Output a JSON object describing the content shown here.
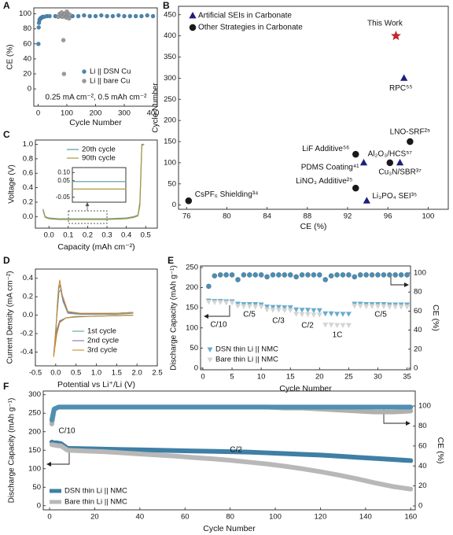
{
  "chart_data": [
    {
      "type": "scatter",
      "label": "A",
      "xlabel": "Cycle Number",
      "ylabel": "CE (%)",
      "xlim": [
        -15,
        415
      ],
      "ylim": [
        -23,
        108
      ],
      "xticks": [
        0,
        100,
        200,
        300,
        400
      ],
      "yticks": [
        0,
        20,
        40,
        60,
        80,
        100
      ],
      "legend": "lower right",
      "annotations": [
        "0.25 mA cm⁻², 0.5 mAh cm⁻²"
      ],
      "series": [
        {
          "name": "Li || DSN Cu",
          "color": "#4a86b0",
          "marker": "circle",
          "x": [
            1,
            2,
            3,
            5,
            8,
            12,
            16,
            20,
            30,
            40,
            60,
            80,
            100,
            120,
            140,
            160,
            180,
            200,
            220,
            240,
            260,
            280,
            300,
            320,
            340,
            360,
            380,
            400
          ],
          "values": [
            60,
            82,
            88,
            92,
            94,
            95,
            96,
            96,
            97,
            97,
            97,
            97,
            98,
            97,
            97,
            98,
            97,
            97,
            98,
            97,
            97,
            98,
            97,
            97,
            97,
            97,
            98,
            97
          ]
        },
        {
          "name": "Li || bare Cu",
          "color": "#9a9a9a",
          "marker": "circle",
          "x": [
            70,
            75,
            80,
            82,
            85,
            88,
            90,
            92,
            95,
            98,
            100,
            102,
            105,
            108,
            110
          ],
          "values": [
            96,
            100,
            98,
            102,
            96,
            65,
            20,
            99,
            101,
            95,
            103,
            97,
            100,
            94,
            99
          ]
        }
      ]
    },
    {
      "type": "scatter",
      "label": "B",
      "xlabel": "CE (%)",
      "ylabel": "Cycle Number",
      "xlim": [
        75.2,
        102
      ],
      "ylim": [
        -10,
        470
      ],
      "xticks": [
        76,
        80,
        84,
        88,
        92,
        96,
        100
      ],
      "yticks": [
        0,
        50,
        100,
        150,
        200,
        250,
        300,
        350,
        400,
        450
      ],
      "legend": "upper left",
      "series": [
        {
          "name": "Artificial SEIs in Carbonate",
          "color": "#1f1f7a",
          "marker": "triangle",
          "x": [
            93.6,
            97.2,
            93.9,
            97.6
          ],
          "values": [
            100,
            100,
            10,
            300
          ],
          "labels": [
            "PDMS Coating⁴¹",
            "Cu₃N/SBR³⁷",
            "Li₃PO₄ SEI³⁵",
            "RPC⁵⁵"
          ]
        },
        {
          "name": "Other Strategies in Carbonate",
          "color": "#1a1a1a",
          "marker": "circle",
          "x": [
            76.2,
            92.8,
            92.8,
            96.2,
            98.2
          ],
          "values": [
            10,
            40,
            120,
            100,
            150
          ],
          "labels": [
            "CsPF₆ Shielding³⁴",
            "LiNO₃ Additive²⁵",
            "LiF Additive⁵⁶",
            "Al₂O₃/HCS⁵⁷",
            "LNO-SRF²⁵"
          ]
        },
        {
          "color": "#c0282d",
          "marker": "star",
          "x": [
            96.8
          ],
          "values": [
            400
          ],
          "labels": [
            "This Work"
          ]
        }
      ]
    },
    {
      "type": "line",
      "label": "C",
      "xlabel": "Capacity (mAh cm⁻²)",
      "ylabel": "Voltage (V)",
      "xlim": [
        -0.07,
        0.56
      ],
      "ylim": [
        -0.16,
        1.06
      ],
      "xticks": [
        {
          "value": 0,
          "label": "0.0"
        },
        0.1,
        0.2,
        0.3,
        0.4,
        0.5
      ],
      "yticks": [
        {
          "value": 0,
          "label": "0.0"
        },
        0.2,
        0.4,
        0.6,
        0.8,
        {
          "value": 1,
          "label": "1.0"
        }
      ],
      "legend": "upper right",
      "x": [
        -0.03,
        -0.02,
        0.0,
        0.05,
        0.1,
        0.2,
        0.3,
        0.4,
        0.44,
        0.46,
        0.47,
        0.475,
        0.48,
        0.49
      ],
      "series": [
        {
          "name": "20th cycle",
          "color": "#5b9a9b",
          "values": [
            0.1,
            0.0,
            -0.02,
            -0.03,
            -0.03,
            -0.03,
            -0.03,
            -0.02,
            0.0,
            0.02,
            0.2,
            0.6,
            1.0,
            1.0
          ]
        },
        {
          "name": "90th cycle",
          "color": "#a89a3c",
          "values": [
            0.08,
            -0.01,
            -0.03,
            -0.04,
            -0.04,
            -0.04,
            -0.04,
            -0.03,
            -0.01,
            0.01,
            0.15,
            0.55,
            0.98,
            1.0
          ]
        }
      ]
    },
    {
      "type": "line",
      "xlim": [
        0.1,
        0.3
      ],
      "ylim": [
        -0.08,
        0.13
      ],
      "yticks": [
        {
          "value": 0.1,
          "label": "0.10"
        },
        0.05,
        -0.05
      ],
      "x": [
        0.1,
        0.2,
        0.3
      ],
      "series": [
        {
          "color": "#5b9a9b",
          "values": [
            0.045,
            0.045,
            0.045
          ]
        },
        {
          "color": "#a89a3c",
          "values": [
            0.0,
            0.0,
            0.0
          ]
        }
      ]
    },
    {
      "type": "line",
      "label": "D",
      "xlabel": "Potential vs Li⁺/Li (V)",
      "ylabel": "Current Density (mA cm⁻²)",
      "xlim": [
        -0.5,
        2.5
      ],
      "ylim": [
        -0.55,
        0.5
      ],
      "xticks": [
        -0.5,
        {
          "value": 0,
          "label": "0.0"
        },
        0.5,
        {
          "value": 1,
          "label": "1.0"
        },
        1.5,
        {
          "value": 2,
          "label": "2.0"
        },
        2.5
      ],
      "yticks": [
        -0.4,
        -0.2,
        {
          "value": 0,
          "label": "0.0"
        },
        0.2,
        0.4
      ],
      "legend": "lower right",
      "series": [
        {
          "name": "1st cycle",
          "color": "#5aa3a0",
          "x": [
            1.9,
            1.5,
            1.0,
            0.5,
            0.25,
            0.1,
            0.03,
            -0.02,
            -0.04,
            0.0,
            0.05,
            0.08,
            0.12,
            0.18,
            0.3,
            0.6,
            1.0,
            1.5,
            1.9
          ],
          "values": [
            0.0,
            -0.005,
            -0.01,
            -0.02,
            -0.03,
            -0.06,
            -0.15,
            -0.3,
            -0.4,
            -0.15,
            0.1,
            0.25,
            0.28,
            0.15,
            0.02,
            0.01,
            0.01,
            0.01,
            0.02
          ]
        },
        {
          "name": "2nd cycle",
          "color": "#8a6fb0",
          "x": [
            1.9,
            1.5,
            1.0,
            0.5,
            0.25,
            0.1,
            0.03,
            -0.02,
            -0.05,
            0.0,
            0.04,
            0.07,
            0.11,
            0.17,
            0.3,
            0.6,
            1.0,
            1.5,
            1.9
          ],
          "values": [
            0.0,
            -0.005,
            -0.01,
            -0.015,
            -0.03,
            -0.07,
            -0.18,
            -0.33,
            -0.43,
            -0.2,
            0.1,
            0.28,
            0.33,
            0.18,
            0.03,
            0.015,
            0.015,
            0.02,
            0.03
          ]
        },
        {
          "name": "3rd cycle",
          "color": "#c98a2a",
          "x": [
            1.9,
            1.5,
            1.0,
            0.5,
            0.25,
            0.1,
            0.03,
            -0.02,
            -0.05,
            0.0,
            0.04,
            0.07,
            0.1,
            0.16,
            0.3,
            0.6,
            1.0,
            1.5,
            1.9
          ],
          "values": [
            0.0,
            -0.005,
            -0.01,
            -0.015,
            -0.03,
            -0.08,
            -0.2,
            -0.35,
            -0.45,
            -0.2,
            0.12,
            0.3,
            0.38,
            0.22,
            0.04,
            0.02,
            0.02,
            0.02,
            0.03
          ]
        }
      ]
    },
    {
      "type": "scatter",
      "label": "E",
      "xlabel": "Cycle Number",
      "ylabel": "Discharge Capacity (mAh g⁻¹)",
      "y2label": "CE (%)",
      "xlim": [
        -0.4,
        35.6
      ],
      "ylim": [
        -4,
        254
      ],
      "y2lim": [
        -1.6,
        107.4
      ],
      "xticks": [
        0,
        5,
        10,
        15,
        20,
        25,
        30,
        35
      ],
      "yticks": [
        0,
        50,
        100,
        150,
        200,
        250
      ],
      "y2ticks": [
        0,
        20,
        40,
        60,
        80,
        100
      ],
      "legend": "lower left",
      "annotations": [
        "C/10",
        "C/5",
        "C/3",
        "C/2",
        "1C",
        "C/5"
      ],
      "x": [
        1,
        2,
        3,
        4,
        5,
        6,
        7,
        8,
        9,
        10,
        11,
        12,
        13,
        14,
        15,
        16,
        17,
        18,
        19,
        20,
        21,
        22,
        23,
        24,
        25,
        26,
        27,
        28,
        29,
        30,
        31,
        32,
        33,
        34,
        35
      ],
      "series": [
        {
          "name": "DSN thin Li || NMC",
          "color": "#6aaccb",
          "marker": "triangle-down",
          "values": [
            168,
            167,
            167,
            166,
            166,
            160,
            159,
            159,
            159,
            158,
            153,
            152,
            152,
            151,
            151,
            146,
            145,
            145,
            144,
            144,
            136,
            136,
            135,
            135,
            135,
            160,
            160,
            159,
            159,
            159,
            159,
            158,
            158,
            158,
            158
          ]
        },
        {
          "name": "Bare thin Li || NMC",
          "color": "#d4d4d4",
          "marker": "triangle-down",
          "values": [
            165,
            164,
            164,
            163,
            163,
            155,
            154,
            154,
            153,
            153,
            146,
            145,
            145,
            144,
            144,
            135,
            134,
            134,
            133,
            133,
            108,
            108,
            107,
            107,
            107,
            155,
            155,
            154,
            154,
            154,
            154,
            153,
            153,
            153,
            153
          ]
        },
        {
          "color": "#4c8db0",
          "marker": "circle",
          "axis": "y2",
          "values": [
            86,
            97,
            98,
            98,
            98,
            93,
            98,
            98,
            98,
            98,
            96,
            98,
            98,
            98,
            98,
            96,
            98,
            98,
            98,
            98,
            93,
            97,
            98,
            98,
            98,
            96,
            98,
            98,
            98,
            98,
            98,
            98,
            98,
            98,
            98
          ]
        }
      ]
    },
    {
      "type": "line",
      "label": "F",
      "xlabel": "Cycle Number",
      "ylabel": "Discharge Capacity (mAh g⁻¹)",
      "y2label": "CE (%)",
      "xlim": [
        -2.8,
        162
      ],
      "ylim": [
        -11,
        310
      ],
      "y2lim": [
        -3.9,
        115
      ],
      "xticks": [
        0,
        20,
        40,
        60,
        80,
        100,
        120,
        140,
        160
      ],
      "yticks": [
        0,
        50,
        100,
        150,
        200,
        250,
        300
      ],
      "y2ticks": [
        0,
        20,
        40,
        60,
        80,
        100
      ],
      "legend": "lower left",
      "annotations": [
        "C/10",
        "C/2"
      ],
      "x": [
        1,
        2,
        3,
        4,
        5,
        8,
        16,
        24,
        32,
        40,
        48,
        56,
        64,
        72,
        80,
        88,
        96,
        104,
        112,
        120,
        128,
        136,
        144,
        152,
        160
      ],
      "series": [
        {
          "color": "#b0b0b0",
          "axis": "y2",
          "values": [
            82,
            96,
            98,
            99,
            99,
            99,
            99,
            99,
            99,
            99,
            99,
            99,
            99,
            99,
            99,
            99,
            99,
            98,
            98,
            97,
            96,
            95,
            94,
            94,
            95
          ]
        },
        {
          "color": "#4f8fb3",
          "axis": "y2",
          "values": [
            86,
            97,
            98,
            99,
            99,
            99,
            99,
            99,
            99,
            99,
            99,
            99,
            99,
            99,
            99,
            99,
            99,
            99,
            99,
            99,
            99,
            99,
            99,
            99,
            99
          ]
        },
        {
          "name": "DSN thin Li || NMC",
          "color": "#3f7fa5",
          "values": [
            172,
            170,
            170,
            169,
            168,
            155,
            154,
            153,
            152,
            151,
            150,
            149,
            148,
            147,
            146,
            145,
            143,
            141,
            139,
            137,
            134,
            131,
            128,
            125,
            122
          ]
        },
        {
          "name": "Bare thin Li || NMC",
          "color": "#b8b8b8",
          "values": [
            165,
            164,
            163,
            162,
            162,
            150,
            148,
            146,
            143,
            140,
            137,
            134,
            130,
            127,
            123,
            118,
            113,
            107,
            100,
            92,
            83,
            73,
            62,
            52,
            45
          ]
        }
      ]
    }
  ]
}
